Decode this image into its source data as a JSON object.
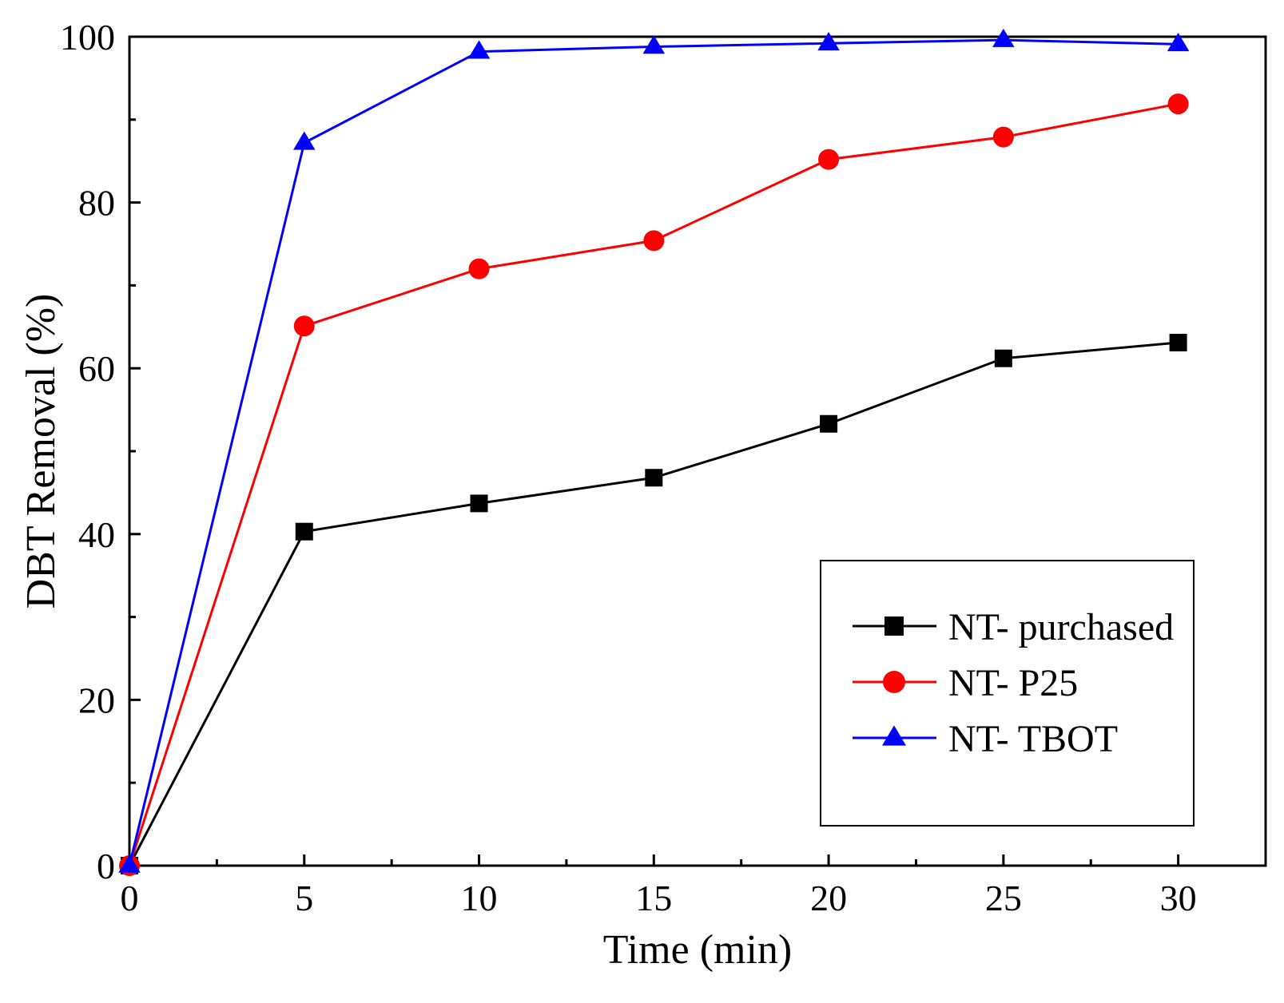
{
  "chart_data": {
    "type": "line",
    "title": "",
    "xlabel": "Time (min)",
    "ylabel": "DBT Removal (%)",
    "xlim": [
      0,
      32.5
    ],
    "ylim": [
      0,
      100
    ],
    "xticks": [
      0,
      5,
      10,
      15,
      20,
      25,
      30
    ],
    "xtick_labels": [
      "0",
      "5",
      "10",
      "15",
      "20",
      "25",
      "30"
    ],
    "xminor": [
      2.5,
      7.5,
      12.5,
      17.5,
      22.5,
      27.5
    ],
    "yticks": [
      0,
      20,
      40,
      60,
      80,
      100
    ],
    "ytick_labels": [
      "0",
      "20",
      "40",
      "60",
      "80",
      "100"
    ],
    "yminor": [
      10,
      30,
      50,
      70,
      90
    ],
    "grid": false,
    "legend_position": "lower-right",
    "x": [
      0,
      5,
      10,
      15,
      20,
      25,
      30
    ],
    "series": [
      {
        "name": "NT- purchased",
        "color": "#000000",
        "marker": "square",
        "values": [
          0,
          40.3,
          43.7,
          46.8,
          53.3,
          61.2,
          63.1
        ]
      },
      {
        "name": "NT- P25",
        "color": "#ff0000",
        "marker": "circle",
        "values": [
          0,
          65.1,
          72.0,
          75.4,
          85.2,
          87.9,
          91.9
        ]
      },
      {
        "name": "NT- TBOT",
        "color": "#0000ff",
        "marker": "triangle",
        "values": [
          0,
          87.2,
          98.2,
          98.8,
          99.2,
          99.6,
          99.1
        ]
      }
    ]
  }
}
